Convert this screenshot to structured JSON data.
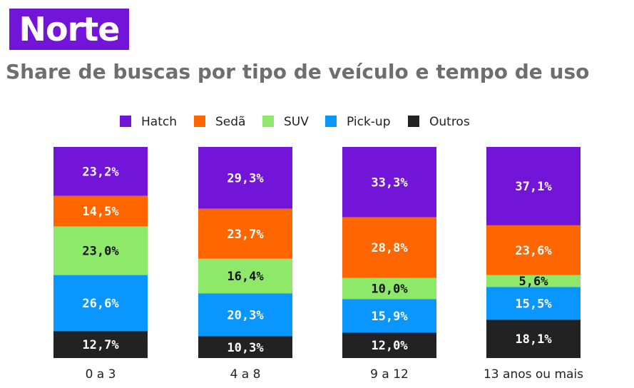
{
  "header": {
    "region": "Norte",
    "title": "Share de buscas por tipo de veículo e tempo de uso"
  },
  "colors": {
    "badge": "#7314d9",
    "title": "#6e6e6e"
  },
  "chart_data": {
    "type": "bar",
    "stacked": true,
    "orientation": "vertical",
    "legend_position": "top",
    "grid": false,
    "categories": [
      "0 a 3",
      "4 a 8",
      "9 a 12",
      "13 anos ou mais"
    ],
    "series": [
      {
        "name": "Hatch",
        "color": "#7314d9",
        "label_color": "#ffffff",
        "values": [
          23.2,
          29.3,
          33.3,
          37.1
        ],
        "labels": [
          "23,2%",
          "29,3%",
          "33,3%",
          "37,1%"
        ]
      },
      {
        "name": "Sedã",
        "color": "#ff6600",
        "label_color": "#ffffff",
        "values": [
          14.5,
          23.7,
          28.8,
          23.6
        ],
        "labels": [
          "14,5%",
          "23,7%",
          "28,8%",
          "23,6%"
        ]
      },
      {
        "name": "SUV",
        "color": "#8ee86a",
        "label_color": "#111111",
        "values": [
          23.0,
          16.4,
          10.0,
          5.6
        ],
        "labels": [
          "23,0%",
          "16,4%",
          "10,0%",
          "5,6%"
        ]
      },
      {
        "name": "Pick-up",
        "color": "#0a96ff",
        "label_color": "#ffffff",
        "values": [
          26.6,
          20.3,
          15.9,
          15.5
        ],
        "labels": [
          "26,6%",
          "20,3%",
          "15,9%",
          "15,5%"
        ]
      },
      {
        "name": "Outros",
        "color": "#222222",
        "label_color": "#ffffff",
        "values": [
          12.7,
          10.3,
          12.0,
          18.1
        ],
        "labels": [
          "12,7%",
          "10,3%",
          "12,0%",
          "18,1%"
        ]
      }
    ]
  }
}
